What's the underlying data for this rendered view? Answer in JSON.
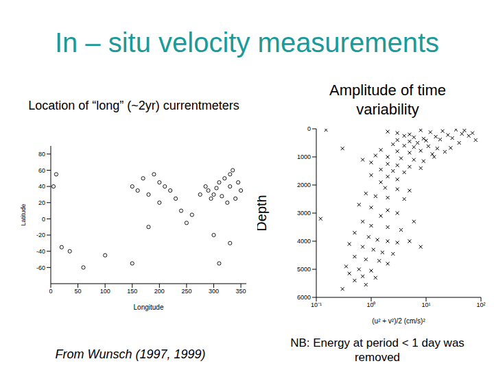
{
  "title": "In – situ velocity measurements",
  "footer_left": "From Wunsch (1997, 1999)",
  "footer_right": "NB: Energy at period < 1 day was removed",
  "chart_data": [
    {
      "type": "scatter",
      "title": "Location of “long” (~2yr) currentmeters",
      "x_label": "Longitude",
      "y_label": "Latitude",
      "xlim": [
        0,
        360
      ],
      "xticks": [
        0,
        50,
        100,
        150,
        200,
        250,
        300,
        350
      ],
      "ylim": [
        -80,
        90
      ],
      "yticks": [
        -60,
        -40,
        -20,
        0,
        20,
        40,
        60,
        80
      ],
      "marker": "circle",
      "color": "#000000",
      "x": [
        290,
        300,
        305,
        310,
        320,
        330,
        335,
        315,
        325,
        340,
        295,
        285,
        275,
        330,
        345,
        350,
        5,
        10,
        200,
        210,
        220,
        180,
        160,
        150,
        200,
        240,
        260,
        250,
        180,
        35,
        20,
        300,
        330,
        310,
        150,
        100,
        60,
        170,
        190,
        230
      ],
      "values": [
        35,
        30,
        38,
        45,
        50,
        55,
        60,
        28,
        20,
        25,
        25,
        40,
        30,
        40,
        45,
        35,
        40,
        55,
        45,
        40,
        35,
        30,
        35,
        40,
        20,
        10,
        5,
        -5,
        -10,
        -40,
        -35,
        -20,
        -30,
        -55,
        -55,
        -45,
        -60,
        50,
        55,
        25
      ]
    },
    {
      "type": "scatter",
      "title": "Amplitude of time variability",
      "y_label": "Depth",
      "x_label": "(u² + v²)/2 (cm/s)²",
      "log": "x",
      "xlim": [
        0.1,
        100
      ],
      "xticks": [
        {
          "value": 0.1,
          "label": "10⁻¹"
        },
        {
          "value": 1,
          "label": "10⁰"
        },
        {
          "value": 10,
          "label": "10¹"
        },
        {
          "value": 100,
          "label": "10²"
        }
      ],
      "ylim": [
        0,
        6000
      ],
      "yticks": [
        0,
        1000,
        2000,
        3000,
        4000,
        5000,
        6000
      ],
      "marker": "x",
      "color": "#000000",
      "x": [
        0.15,
        0.3,
        0.7,
        2,
        3,
        5,
        8,
        12,
        20,
        35,
        50,
        70,
        4,
        6,
        9,
        15,
        25,
        45,
        3,
        5,
        7,
        10,
        18,
        30,
        2.5,
        4,
        6,
        11,
        16,
        28,
        1.5,
        3,
        5,
        8,
        13,
        22,
        1.2,
        2,
        3.5,
        6,
        9,
        14,
        1,
        2,
        3,
        5,
        8,
        1.5,
        2.5,
        4,
        1,
        2,
        3,
        1.5,
        60,
        80,
        40,
        1.8,
        3,
        5,
        0.8,
        1.2,
        2,
        4,
        0.6,
        1,
        2,
        3,
        1.5,
        0.12,
        0.7,
        1,
        2,
        3.5,
        0.5,
        0.9,
        1.3,
        2,
        3,
        5,
        0.4,
        0.7,
        1.1,
        1.6,
        2.5,
        0.5,
        0.8,
        1.4,
        2,
        0.35,
        0.6,
        1,
        0.4,
        0.7,
        1.2,
        0.5,
        0.8,
        0.3,
        6,
        8
      ],
      "values": [
        40,
        700,
        1100,
        100,
        150,
        200,
        50,
        120,
        80,
        30,
        60,
        150,
        250,
        300,
        350,
        280,
        220,
        180,
        400,
        450,
        500,
        420,
        380,
        330,
        550,
        600,
        650,
        620,
        700,
        680,
        750,
        800,
        850,
        780,
        900,
        820,
        950,
        1000,
        1050,
        1100,
        1150,
        1000,
        1200,
        1250,
        1300,
        1350,
        1400,
        1450,
        1500,
        1550,
        1650,
        1700,
        1800,
        1900,
        250,
        400,
        500,
        2100,
        2150,
        2200,
        2300,
        2400,
        2450,
        2500,
        2700,
        2800,
        2900,
        3000,
        3100,
        3200,
        3300,
        3450,
        3500,
        3600,
        3700,
        3850,
        3950,
        4000,
        4050,
        4000,
        4100,
        4200,
        4300,
        4400,
        4450,
        4550,
        4650,
        4700,
        4800,
        4900,
        5000,
        5050,
        5150,
        5250,
        5300,
        5400,
        5550,
        5700,
        3300,
        4200
      ]
    }
  ]
}
